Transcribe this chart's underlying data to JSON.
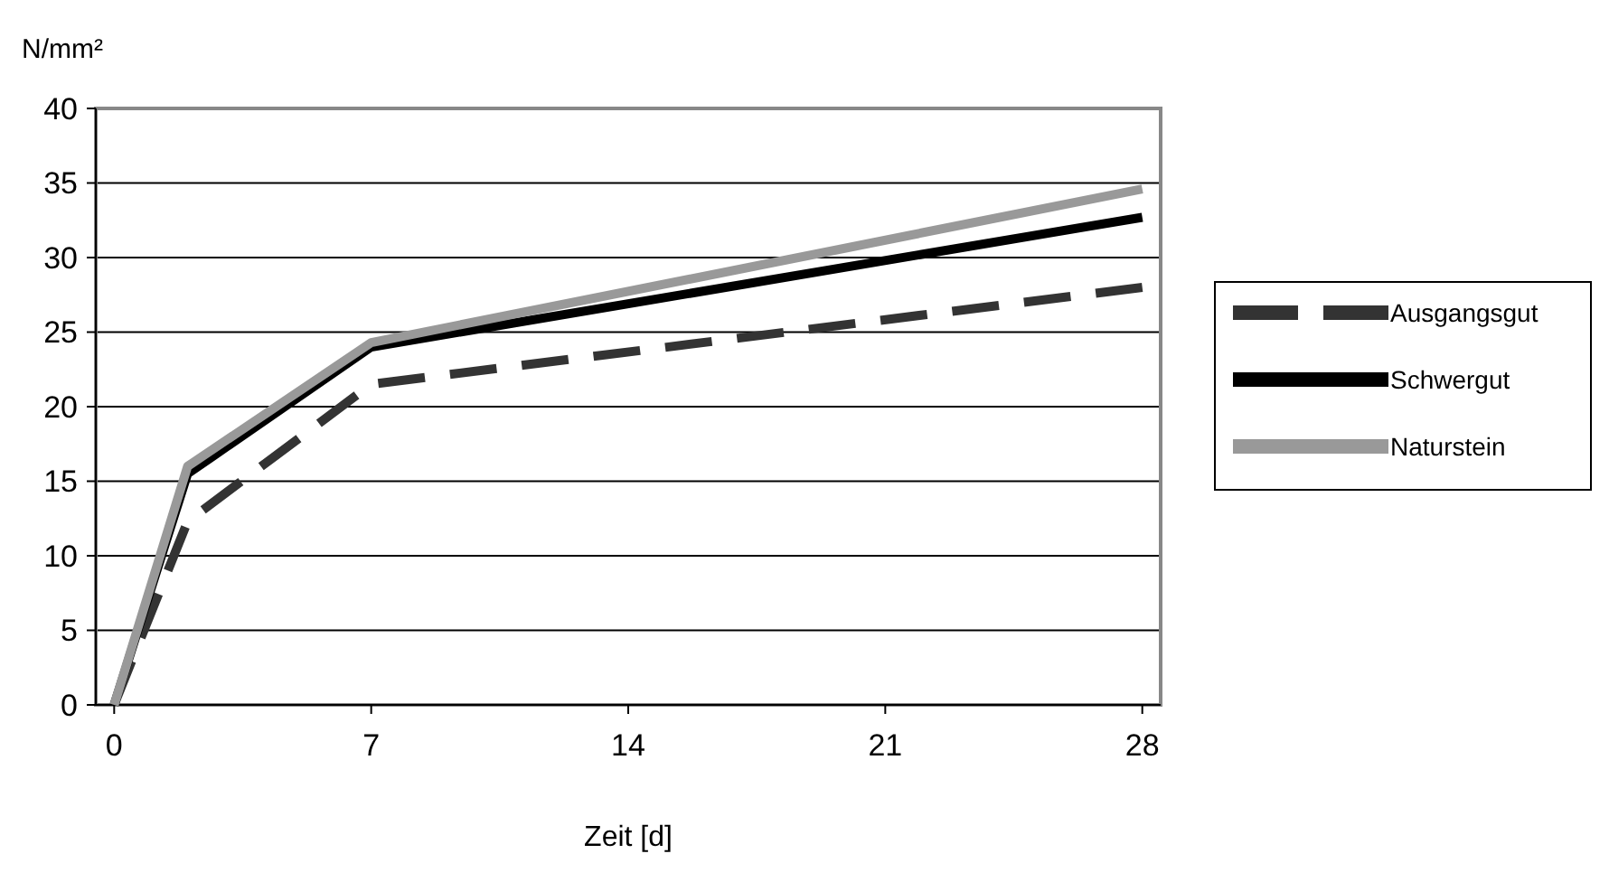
{
  "chart_data": {
    "type": "line",
    "xlabel": "Zeit [d]",
    "ylabel": "N/mm²",
    "x": [
      0,
      2,
      7,
      28
    ],
    "xlim": [
      -0.5,
      28.5
    ],
    "xticks": [
      0,
      7,
      14,
      21,
      28
    ],
    "ylim": [
      0,
      40
    ],
    "yticks": [
      0,
      5,
      10,
      15,
      20,
      25,
      30,
      35,
      40
    ],
    "grid": "y",
    "legend": "right",
    "series": [
      {
        "name": "Ausgangsgut",
        "color": "#333333",
        "line_style": "dashed",
        "values": [
          0,
          12.3,
          21.5,
          28
        ]
      },
      {
        "name": "Schwergut",
        "color": "#000000",
        "line_style": "solid",
        "values": [
          0,
          15.5,
          24,
          32.7
        ]
      },
      {
        "name": "Naturstein",
        "color": "#999999",
        "line_style": "solid",
        "values": [
          0,
          16,
          24.3,
          34.6
        ]
      }
    ]
  }
}
